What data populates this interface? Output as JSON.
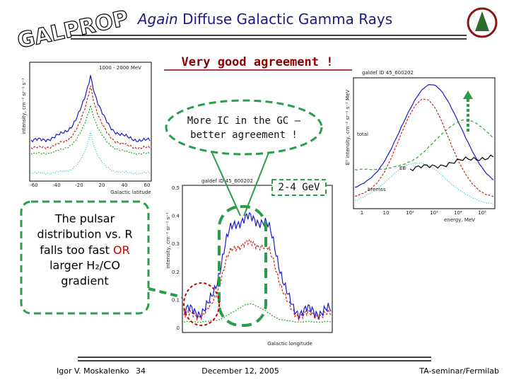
{
  "header": {
    "logo": "GALPROP",
    "title_italic": "Again",
    "title_rest": "Diffuse Galactic Gamma Rays"
  },
  "headline": "Very good agreement !",
  "callouts": {
    "ic": [
      "More IC in the GC –",
      "better agreement !"
    ],
    "band": "2-4 GeV",
    "pulsar": {
      "before": [
        "The pulsar",
        "distribution vs. R"
      ],
      "line": "falls too fast",
      "highlight": "OR",
      "after": [
        "larger H₂/CO",
        "gradient"
      ]
    }
  },
  "plots": {
    "latitude": {
      "xlabel": "Galactic latitude",
      "ylabel": "intensity, cm⁻² sr⁻¹ s⁻¹",
      "range": "1000 - 2000 MeV",
      "xticks": [
        "-60",
        "-40",
        "-20",
        "20",
        "40",
        "60"
      ]
    },
    "longitude": {
      "xlabel": "Galactic longitude",
      "ylabel": "intensity, cm⁻² sr⁻¹ s⁻¹",
      "id": "galdef ID 45_600202",
      "yticks": [
        "0.5",
        "0.4",
        "0.3",
        "0.2",
        "0.1",
        "0"
      ]
    },
    "spectrum": {
      "xlabel": "energy, MeV",
      "ylabel": "E² intensity, cm⁻² sr⁻¹ s⁻¹ MeV",
      "id": "galdef ID 45_600202",
      "labels": [
        "total",
        "EB",
        "bremss"
      ],
      "xticks": [
        "1",
        "10",
        "10²",
        "10³",
        "10⁴",
        "10⁵"
      ]
    }
  },
  "footer": {
    "author": "Igor V. Moskalenko",
    "page": "34",
    "date": "December 12, 2005",
    "venue": "TA-seminar/Fermilab"
  }
}
